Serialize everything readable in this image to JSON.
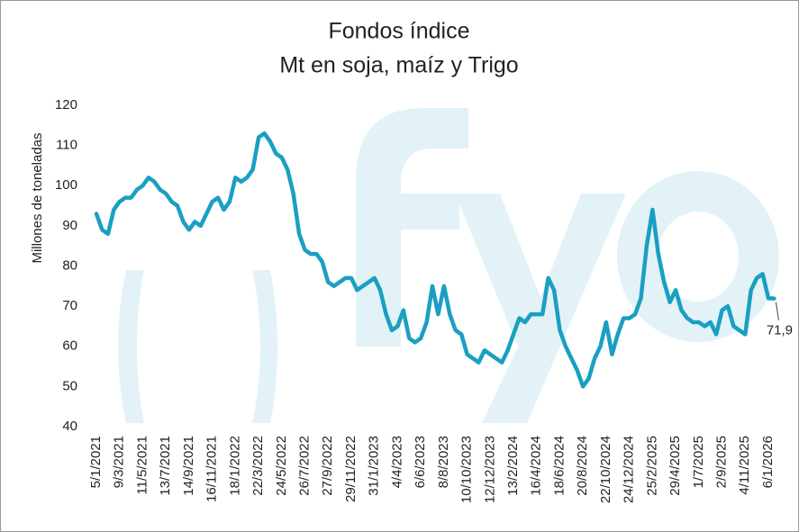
{
  "chart_data": {
    "type": "line",
    "title": "Fondos índice",
    "subtitle": "Mt en soja, maíz y Trigo",
    "y_label": "Millones de toneladas",
    "ylim": [
      40,
      120
    ],
    "yticks": [
      40,
      50,
      60,
      70,
      80,
      90,
      100,
      110,
      120
    ],
    "grid": false,
    "categories": [
      "5/1/2021",
      null,
      null,
      null,
      "9/3/2021",
      null,
      null,
      null,
      "11/5/2021",
      null,
      null,
      null,
      "13/7/2021",
      null,
      null,
      null,
      "14/9/2021",
      null,
      null,
      null,
      "16/11/2021",
      null,
      null,
      null,
      "18/1/2022",
      null,
      null,
      null,
      "22/3/2022",
      null,
      null,
      null,
      "24/5/2022",
      null,
      null,
      null,
      "26/7/2022",
      null,
      null,
      null,
      "27/9/2022",
      null,
      null,
      null,
      "29/11/2022",
      null,
      null,
      null,
      "31/1/2023",
      null,
      null,
      null,
      "4/4/2023",
      null,
      null,
      null,
      "6/6/2023",
      null,
      null,
      null,
      "8/8/2023",
      null,
      null,
      null,
      "10/10/2023",
      null,
      null,
      null,
      "12/12/2023",
      null,
      null,
      null,
      "13/2/2024",
      null,
      null,
      null,
      "16/4/2024",
      null,
      null,
      null,
      "18/6/2024",
      null,
      null,
      null,
      "20/8/2024",
      null,
      null,
      null,
      "22/10/2024",
      null,
      null,
      null,
      "24/12/2024",
      null,
      null,
      null,
      "25/2/2025",
      null,
      null,
      null,
      "29/4/2025",
      null,
      null,
      null,
      "1/7/2025",
      null,
      null,
      null,
      "2/9/2025",
      null,
      null,
      null,
      "4/11/2025",
      null,
      null,
      null,
      "6/1/2026",
      null
    ],
    "series": [
      {
        "name": "Fondos índice",
        "color": "#1a9fc2",
        "values": [
          93,
          89,
          88,
          94,
          96,
          97,
          97,
          99,
          100,
          102,
          101,
          99,
          98,
          96,
          95,
          91,
          89,
          91,
          90,
          93,
          96,
          97,
          94,
          96,
          102,
          101,
          102,
          104,
          112,
          113,
          111,
          108,
          107,
          104,
          98,
          88,
          84,
          83,
          83,
          81,
          76,
          75,
          76,
          77,
          77,
          74,
          75,
          76,
          77,
          74,
          68,
          64,
          65,
          69,
          62,
          61,
          62,
          66,
          75,
          68,
          75,
          68,
          64,
          63,
          58,
          57,
          56,
          59,
          58,
          57,
          56,
          59,
          63,
          67,
          66,
          68,
          68,
          68,
          77,
          74,
          64,
          60,
          57,
          54,
          50,
          52,
          57,
          60,
          66,
          58,
          63,
          67,
          67,
          68,
          72,
          85,
          94,
          83,
          76,
          71,
          74,
          69,
          67,
          66,
          66,
          65,
          66,
          63,
          69,
          70,
          65,
          64,
          63,
          74,
          77,
          78,
          72,
          71.9
        ],
        "value_labels": [
          null,
          null,
          null,
          null,
          null,
          null,
          null,
          null,
          null,
          null,
          null,
          null,
          null,
          null,
          null,
          null,
          null,
          null,
          null,
          null,
          null,
          null,
          null,
          null,
          null,
          null,
          null,
          null,
          null,
          null,
          null,
          null,
          null,
          null,
          null,
          null,
          null,
          null,
          null,
          null,
          null,
          null,
          null,
          null,
          null,
          null,
          null,
          null,
          null,
          null,
          null,
          null,
          null,
          null,
          null,
          null,
          null,
          null,
          null,
          null,
          null,
          null,
          null,
          null,
          null,
          null,
          null,
          null,
          null,
          null,
          null,
          null,
          null,
          null,
          null,
          null,
          null,
          null,
          null,
          null,
          null,
          null,
          null,
          null,
          null,
          null,
          null,
          null,
          null,
          null,
          null,
          null,
          null,
          null,
          null,
          null,
          null,
          null,
          null,
          null,
          null,
          null,
          null,
          null,
          null,
          null,
          null,
          null,
          null,
          null,
          null,
          null,
          null,
          null,
          null,
          null,
          null,
          "71,9"
        ]
      }
    ]
  }
}
